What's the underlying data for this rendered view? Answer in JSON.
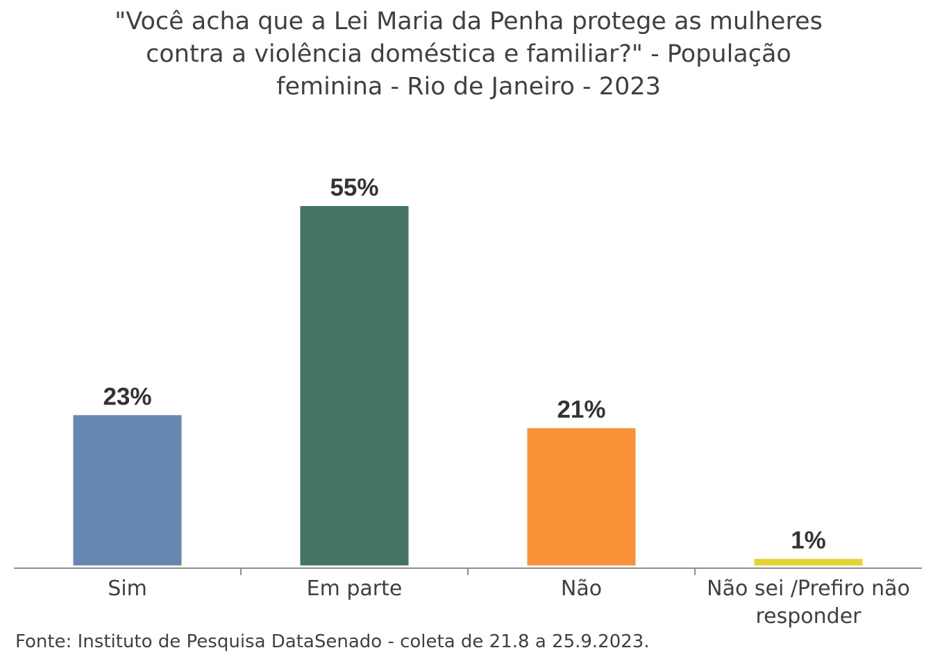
{
  "chart_data": {
    "type": "bar",
    "title_lines": [
      "\"Você acha que a Lei Maria da Penha protege as mulheres",
      "contra a violência doméstica e familiar?\" - População",
      "feminina - Rio de Janeiro - 2023"
    ],
    "categories": [
      [
        "Sim"
      ],
      [
        "Em parte"
      ],
      [
        "Não"
      ],
      [
        "Não sei /Prefiro não",
        "responder"
      ]
    ],
    "values": [
      23,
      55,
      21,
      1
    ],
    "value_labels": [
      "23%",
      "55%",
      "21%",
      "1%"
    ],
    "colors": [
      "#6687B0",
      "#447563",
      "#F99139",
      "#E3D433"
    ],
    "ylim": [
      0,
      55
    ],
    "grid": false,
    "legend": "none",
    "source": "Fonte: Instituto de Pesquisa DataSenado - coleta de 21.8 a 25.9.2023."
  }
}
